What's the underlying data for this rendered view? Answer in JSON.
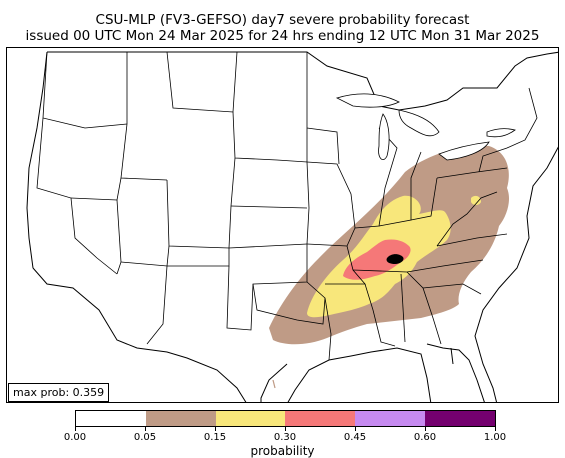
{
  "title_line1": "CSU-MLP (FV3-GEFSO) day7 severe probability forecast",
  "title_line2": "issued 00 UTC Mon 24 Mar 2025 for 24 hrs ending 12 UTC Mon 31 Mar 2025",
  "max_prob_label": "max prob: 0.359",
  "colorbar": {
    "label": "probability",
    "ticks": [
      "0.00",
      "0.05",
      "0.15",
      "0.30",
      "0.45",
      "0.60",
      "1.00"
    ],
    "colors": [
      "#ffffff",
      "#bf9b86",
      "#f8e77b",
      "#f57878",
      "#c68af0",
      "#74006f"
    ]
  },
  "map_colors": {
    "land": "#ffffff",
    "border": "#000000",
    "lakes": "#ffffff",
    "prob_005": "#bf9b86",
    "prob_015": "#f8e77b",
    "prob_030": "#f57878",
    "max_marker": "#000000"
  }
}
